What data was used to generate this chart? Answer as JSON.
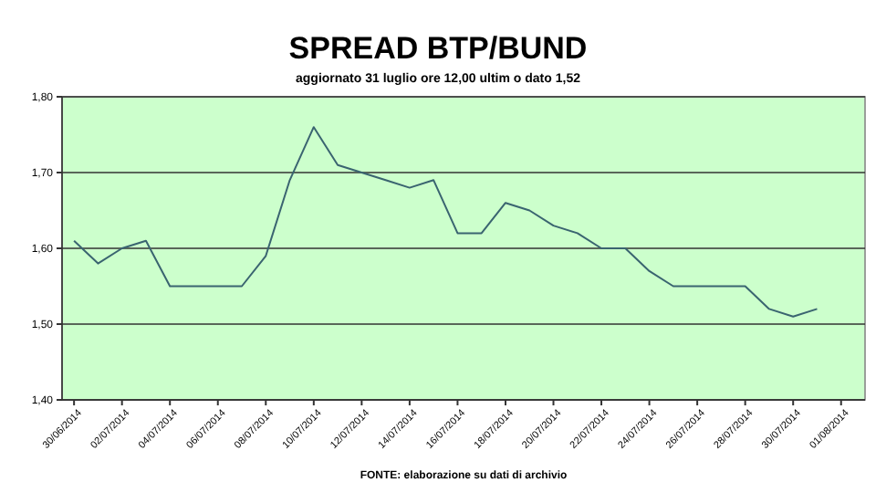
{
  "chart_data": {
    "type": "line",
    "title": "SPREAD BTP/BUND",
    "subtitle": "aggiornato 31 luglio ore 12,00 ultim o dato 1,52",
    "annotations": [
      "FONTE: elaborazione su dati di archivio"
    ],
    "x": [
      "2014-06-30",
      "2014-07-01",
      "2014-07-02",
      "2014-07-03",
      "2014-07-04",
      "2014-07-05",
      "2014-07-06",
      "2014-07-07",
      "2014-07-08",
      "2014-07-09",
      "2014-07-10",
      "2014-07-11",
      "2014-07-12",
      "2014-07-13",
      "2014-07-14",
      "2014-07-15",
      "2014-07-16",
      "2014-07-17",
      "2014-07-18",
      "2014-07-19",
      "2014-07-20",
      "2014-07-21",
      "2014-07-22",
      "2014-07-23",
      "2014-07-24",
      "2014-07-25",
      "2014-07-26",
      "2014-07-27",
      "2014-07-28",
      "2014-07-29",
      "2014-07-30",
      "2014-07-31"
    ],
    "series": [
      {
        "color": "#3a6470",
        "values": [
          1.61,
          1.58,
          1.6,
          1.61,
          1.55,
          1.55,
          1.55,
          1.55,
          1.59,
          1.69,
          1.76,
          1.71,
          1.7,
          1.69,
          1.68,
          1.69,
          1.62,
          1.62,
          1.66,
          1.65,
          1.63,
          1.62,
          1.6,
          1.6,
          1.57,
          1.55,
          1.55,
          1.55,
          1.55,
          1.52,
          1.51,
          1.52
        ]
      }
    ],
    "xlim": [
      "2014-06-29T12:00",
      "2014-08-02"
    ],
    "xticks": [
      {
        "value": "2014-06-30",
        "label": "30/06/2014"
      },
      {
        "value": "2014-07-02",
        "label": "02/07/2014"
      },
      {
        "value": "2014-07-04",
        "label": "04/07/2014"
      },
      {
        "value": "2014-07-06",
        "label": "06/07/2014"
      },
      {
        "value": "2014-07-08",
        "label": "08/07/2014"
      },
      {
        "value": "2014-07-10",
        "label": "10/07/2014"
      },
      {
        "value": "2014-07-12",
        "label": "12/07/2014"
      },
      {
        "value": "2014-07-14",
        "label": "14/07/2014"
      },
      {
        "value": "2014-07-16",
        "label": "16/07/2014"
      },
      {
        "value": "2014-07-18",
        "label": "18/07/2014"
      },
      {
        "value": "2014-07-20",
        "label": "20/07/2014"
      },
      {
        "value": "2014-07-22",
        "label": "22/07/2014"
      },
      {
        "value": "2014-07-24",
        "label": "24/07/2014"
      },
      {
        "value": "2014-07-26",
        "label": "26/07/2014"
      },
      {
        "value": "2014-07-28",
        "label": "28/07/2014"
      },
      {
        "value": "2014-07-30",
        "label": "30/07/2014"
      },
      {
        "value": "2014-08-01",
        "label": "01/08/2014"
      }
    ],
    "ylim": [
      1.4,
      1.8
    ],
    "yticks": [
      {
        "value": 1.4,
        "label": "1,40"
      },
      {
        "value": 1.5,
        "label": "1,50"
      },
      {
        "value": 1.6,
        "label": "1,60"
      },
      {
        "value": 1.7,
        "label": "1,70"
      },
      {
        "value": 1.8,
        "label": "1,80"
      }
    ],
    "grid": "y",
    "marker": "none",
    "line_style": "solid"
  }
}
